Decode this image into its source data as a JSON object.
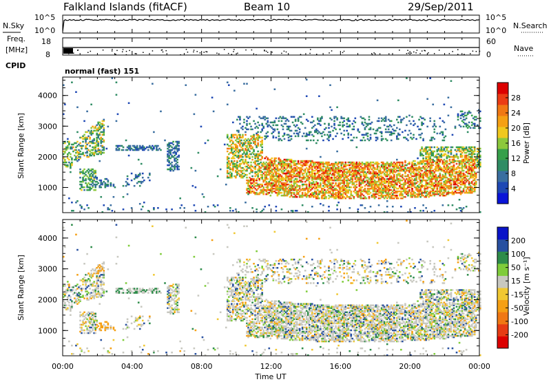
{
  "header": {
    "station": "Falkland Islands (fitACF)",
    "beam": "Beam 10",
    "date": "29/Sep/2011"
  },
  "chart_data": [
    {
      "type": "line",
      "panel": "noise",
      "left_label": "N.Sky",
      "right_label": "N.Search",
      "left_ticks": [
        "10^5",
        "10^0"
      ],
      "right_ticks": [
        "10^5",
        "10^0"
      ],
      "yscale": "log"
    },
    {
      "type": "scatter",
      "panel": "frequency",
      "left_label_lines": [
        "Freq.",
        "[MHz]"
      ],
      "left_ticks": [
        18,
        8
      ],
      "right_label": "Nave",
      "right_ticks": [
        60,
        0
      ]
    },
    {
      "type": "table",
      "panel": "cpid",
      "label": "CPID",
      "value": "normal (fast) 151"
    },
    {
      "type": "heatmap",
      "panel": "power",
      "ylabel": "Slant Range [km]",
      "yticks": [
        1000,
        2000,
        3000,
        4000
      ],
      "ylim": [
        180,
        4600
      ],
      "colorbar_label": "Power [dB]",
      "colorbar_ticks": [
        4,
        8,
        12,
        16,
        20,
        24,
        28
      ],
      "colorbar_range": [
        0,
        32
      ],
      "colorbar_colors": [
        "#0a14d8",
        "#1e48b4",
        "#3a6ea0",
        "#2f8c64",
        "#36a04a",
        "#8cc83c",
        "#f0c81e",
        "#f5a014",
        "#f07814",
        "#eb3c14",
        "#dc0000"
      ]
    },
    {
      "type": "heatmap",
      "panel": "velocity",
      "ylabel": "Slant Range [km]",
      "yticks": [
        1000,
        2000,
        3000,
        4000
      ],
      "ylim": [
        180,
        4600
      ],
      "colorbar_label": "Velocity [m s⁻¹]",
      "colorbar_ticks": [
        "200",
        "100",
        "50",
        "15",
        "-15",
        "-50",
        "-100",
        "-200"
      ],
      "colorbar_colors": [
        "#0a14c8",
        "#2850a0",
        "#2e8c4a",
        "#7fcc3a",
        "#c8c8c0",
        "#f0c832",
        "#f5a014",
        "#f07814",
        "#e63c14",
        "#dc0000"
      ]
    }
  ],
  "time_axis": {
    "label": "Time UT",
    "ticks": [
      "00:00",
      "04:00",
      "08:00",
      "12:00",
      "16:00",
      "20:00",
      "00:00"
    ]
  }
}
